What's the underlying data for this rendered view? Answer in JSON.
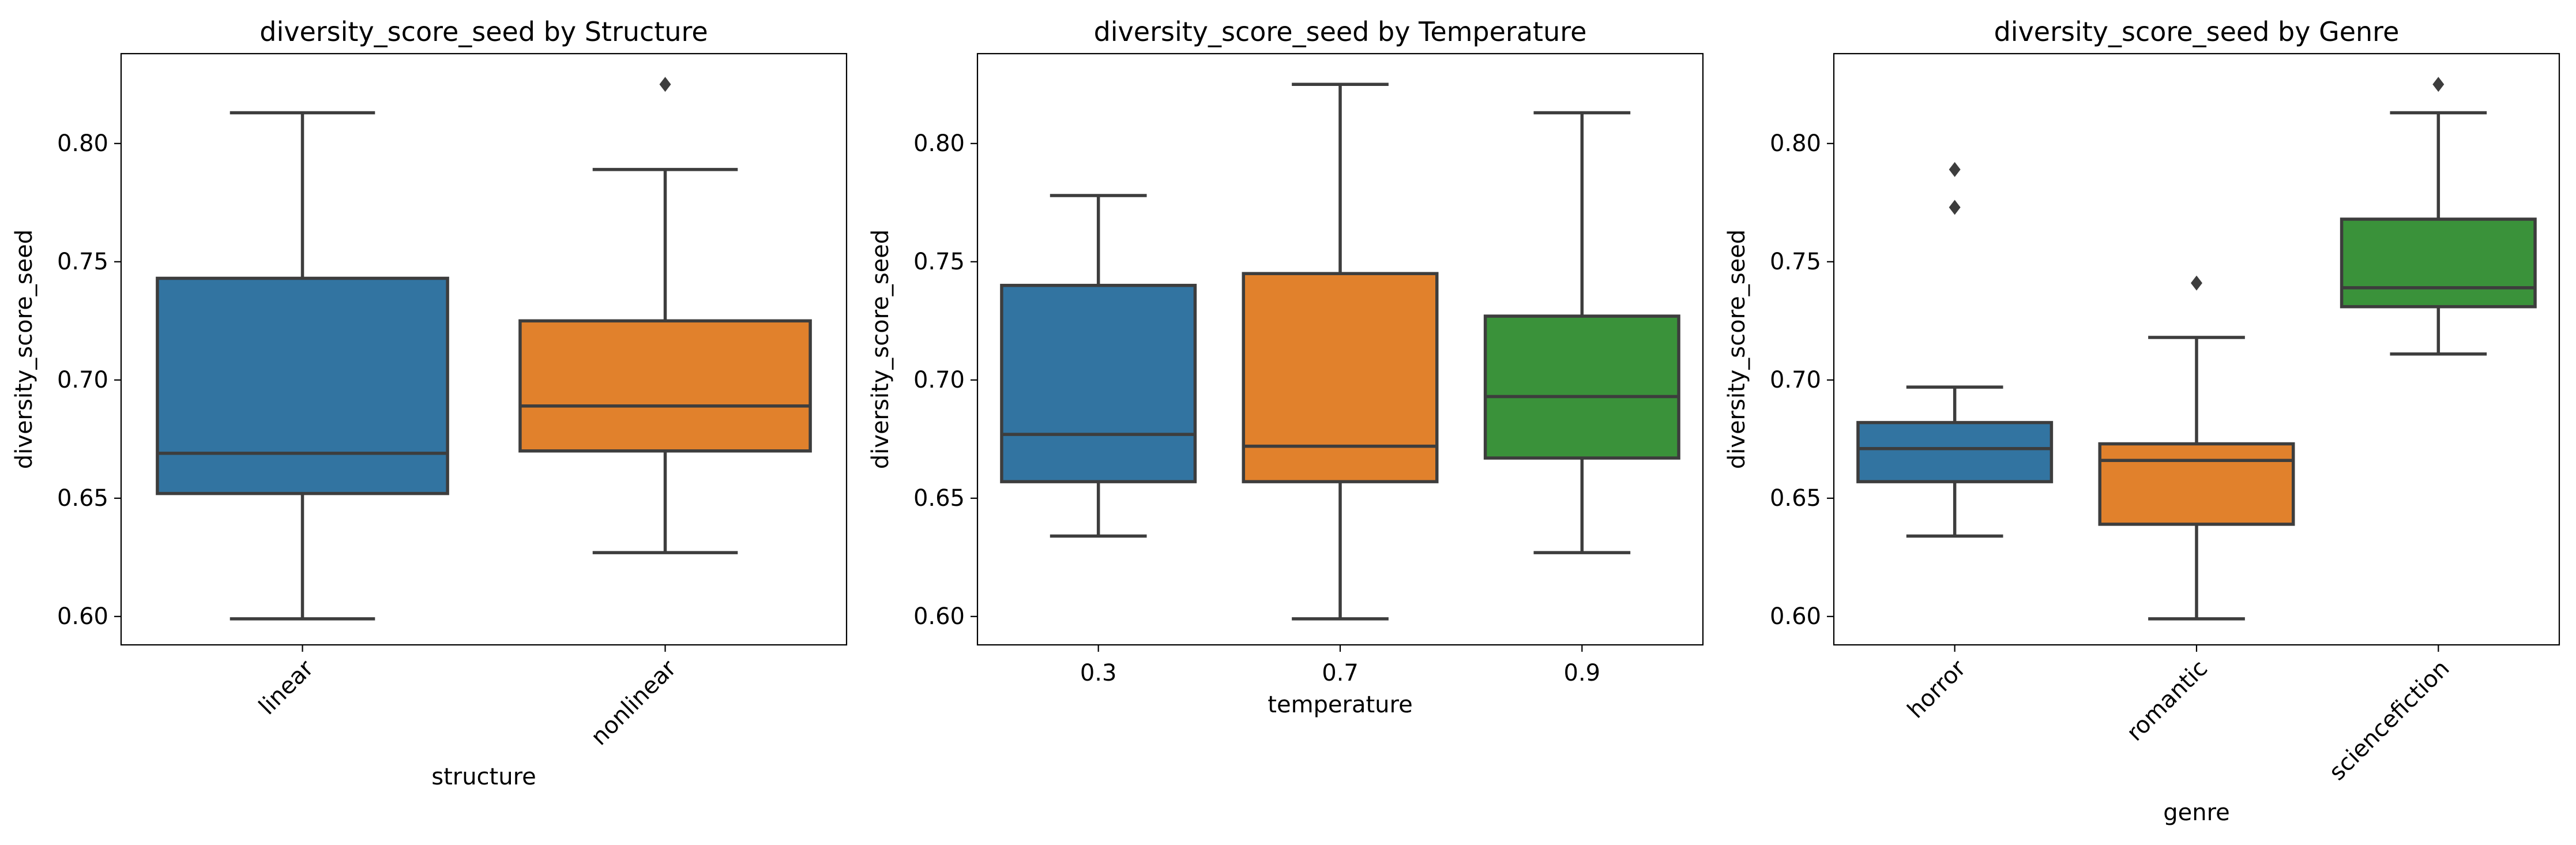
{
  "chart_data": [
    {
      "type": "box",
      "title": "diversity_score_seed by Structure",
      "xlabel": "structure",
      "ylabel": "diversity_score_seed",
      "ylim": [
        0.588,
        0.838
      ],
      "yticks": [
        0.6,
        0.65,
        0.7,
        0.75,
        0.8
      ],
      "xtick_rotation": 45,
      "grid": false,
      "categories": [
        "linear",
        "nonlinear"
      ],
      "boxes": [
        {
          "category": "linear",
          "whislo": 0.599,
          "q1": 0.652,
          "med": 0.669,
          "q3": 0.743,
          "whishi": 0.813,
          "fliers": [],
          "color": "#3274a1"
        },
        {
          "category": "nonlinear",
          "whislo": 0.627,
          "q1": 0.67,
          "med": 0.689,
          "q3": 0.725,
          "whishi": 0.789,
          "fliers": [
            0.825
          ],
          "color": "#e1812c"
        }
      ]
    },
    {
      "type": "box",
      "title": "diversity_score_seed by Temperature",
      "xlabel": "temperature",
      "ylabel": "diversity_score_seed",
      "ylim": [
        0.588,
        0.838
      ],
      "yticks": [
        0.6,
        0.65,
        0.7,
        0.75,
        0.8
      ],
      "xtick_rotation": 0,
      "grid": false,
      "categories": [
        "0.3",
        "0.7",
        "0.9"
      ],
      "boxes": [
        {
          "category": "0.3",
          "whislo": 0.634,
          "q1": 0.657,
          "med": 0.677,
          "q3": 0.74,
          "whishi": 0.778,
          "fliers": [],
          "color": "#3274a1"
        },
        {
          "category": "0.7",
          "whislo": 0.599,
          "q1": 0.657,
          "med": 0.672,
          "q3": 0.745,
          "whishi": 0.825,
          "fliers": [],
          "color": "#e1812c"
        },
        {
          "category": "0.9",
          "whislo": 0.627,
          "q1": 0.667,
          "med": 0.693,
          "q3": 0.727,
          "whishi": 0.813,
          "fliers": [],
          "color": "#3a923a"
        }
      ]
    },
    {
      "type": "box",
      "title": "diversity_score_seed by Genre",
      "xlabel": "genre",
      "ylabel": "diversity_score_seed",
      "ylim": [
        0.588,
        0.838
      ],
      "yticks": [
        0.6,
        0.65,
        0.7,
        0.75,
        0.8
      ],
      "xtick_rotation": 45,
      "grid": false,
      "categories": [
        "horror",
        "romantic",
        "sciencefiction"
      ],
      "boxes": [
        {
          "category": "horror",
          "whislo": 0.634,
          "q1": 0.657,
          "med": 0.671,
          "q3": 0.682,
          "whishi": 0.697,
          "fliers": [
            0.773,
            0.789
          ],
          "color": "#3274a1"
        },
        {
          "category": "romantic",
          "whislo": 0.599,
          "q1": 0.639,
          "med": 0.666,
          "q3": 0.673,
          "whishi": 0.718,
          "fliers": [
            0.741
          ],
          "color": "#e1812c"
        },
        {
          "category": "sciencefiction",
          "whislo": 0.711,
          "q1": 0.731,
          "med": 0.739,
          "q3": 0.768,
          "whishi": 0.813,
          "fliers": [
            0.825
          ],
          "color": "#3a923a"
        }
      ]
    }
  ]
}
